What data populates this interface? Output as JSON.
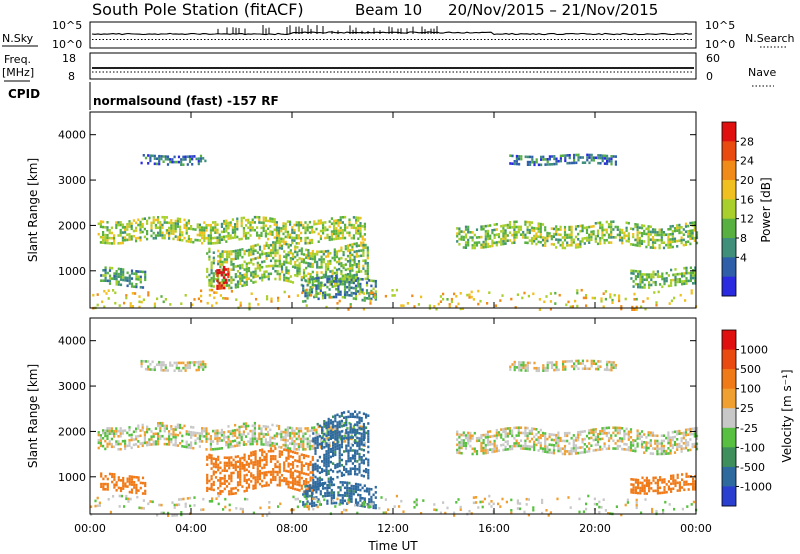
{
  "header": {
    "station": "South Pole Station (fitACF)",
    "beam": "Beam 10",
    "dates": "20/Nov/2015 – 21/Nov/2015"
  },
  "status_panels": {
    "nsky_label": "N.Sky",
    "nsearch_label": "N.Search",
    "freq_label_top": "Freq.",
    "freq_label_unit": "[MHz]",
    "nave_label": "Nave",
    "cpid_label": "CPID",
    "noise_tick_top": "10^5",
    "noise_tick_bottom": "10^0",
    "freq_tick_top": "18",
    "freq_tick_bottom": "8",
    "nave_tick_top": "60",
    "nave_tick_bottom": "0",
    "cpid_text": "normalsound (fast) -157 RF"
  },
  "chart_data": [
    {
      "type": "heatmap",
      "name": "power",
      "ylabel": "Slant Range [km]",
      "xlabel": "Time UT",
      "x_ticks": [
        "00:00",
        "04:00",
        "08:00",
        "12:00",
        "16:00",
        "20:00",
        "00:00"
      ],
      "xlim_hours": [
        0,
        24
      ],
      "ylim": [
        180,
        4500
      ],
      "y_ticks": [
        "1000",
        "2000",
        "3000",
        "4000"
      ],
      "colorbar_label": "Power [dB]",
      "colorbar_ticks": [
        "4",
        "8",
        "12",
        "16",
        "20",
        "24",
        "28"
      ],
      "colorbar_colors": [
        "#2a2ae0",
        "#2f5fa8",
        "#3f8f7a",
        "#58b040",
        "#a8cf2c",
        "#f0c020",
        "#f08a18",
        "#e84a10",
        "#e01010"
      ],
      "colorbar_range": [
        0,
        30
      ],
      "regions": [
        {
          "t0": 0.3,
          "t1": 10.9,
          "r0": 1650,
          "r1": 2150,
          "level": 14
        },
        {
          "t0": 14.5,
          "t1": 24.0,
          "r0": 1550,
          "r1": 2050,
          "level": 13
        },
        {
          "t0": 2.0,
          "t1": 4.6,
          "r0": 3380,
          "r1": 3560,
          "level": 6
        },
        {
          "t0": 16.6,
          "t1": 20.8,
          "r0": 3360,
          "r1": 3560,
          "level": 6
        },
        {
          "t0": 0.4,
          "t1": 2.2,
          "r0": 650,
          "r1": 1050,
          "level": 10
        },
        {
          "t0": 4.6,
          "t1": 11.0,
          "r0": 700,
          "r1": 1550,
          "level": 13
        },
        {
          "t0": 5.0,
          "t1": 5.5,
          "r0": 650,
          "r1": 1150,
          "level": 28
        },
        {
          "t0": 8.4,
          "t1": 11.3,
          "r0": 350,
          "r1": 850,
          "level": 9
        },
        {
          "t0": 21.4,
          "t1": 24.0,
          "r0": 650,
          "r1": 1050,
          "level": 12
        },
        {
          "t0": 0.0,
          "t1": 24.0,
          "r0": 190,
          "r1": 560,
          "level": 18
        }
      ]
    },
    {
      "type": "heatmap",
      "name": "velocity",
      "ylabel": "Slant Range [km]",
      "xlabel": "Time UT",
      "x_ticks": [
        "00:00",
        "04:00",
        "08:00",
        "12:00",
        "16:00",
        "20:00",
        "00:00"
      ],
      "xlim_hours": [
        0,
        24
      ],
      "ylim": [
        180,
        4500
      ],
      "y_ticks": [
        "1000",
        "2000",
        "3000",
        "4000"
      ],
      "colorbar_label": "Velocity [m s⁻¹]",
      "colorbar_ticks": [
        "1000",
        "500",
        "100",
        "25",
        "-25",
        "-100",
        "-500",
        "-1000"
      ],
      "colorbar_colors": [
        "#2a3fd0",
        "#2f6a9f",
        "#3f8f5c",
        "#58c040",
        "#c8c8c8",
        "#f0a030",
        "#f07a18",
        "#e84a10",
        "#e01010"
      ],
      "regions": [
        {
          "t0": 0.3,
          "t1": 10.9,
          "r0": 1650,
          "r1": 2150,
          "velocity": 0
        },
        {
          "t0": 14.5,
          "t1": 24.0,
          "r0": 1550,
          "r1": 2050,
          "velocity": 0
        },
        {
          "t0": 2.0,
          "t1": 4.6,
          "r0": 3380,
          "r1": 3560,
          "velocity": 0
        },
        {
          "t0": 16.6,
          "t1": 20.8,
          "r0": 3360,
          "r1": 3560,
          "velocity": 0
        },
        {
          "t0": 0.4,
          "t1": 2.2,
          "r0": 650,
          "r1": 1050,
          "velocity": -300
        },
        {
          "t0": 4.6,
          "t1": 8.8,
          "r0": 700,
          "r1": 1550,
          "velocity": -350
        },
        {
          "t0": 8.8,
          "t1": 11.0,
          "r0": 900,
          "r1": 2300,
          "velocity": 300
        },
        {
          "t0": 8.4,
          "t1": 11.3,
          "r0": 350,
          "r1": 850,
          "velocity": 300
        },
        {
          "t0": 21.4,
          "t1": 24.0,
          "r0": 650,
          "r1": 1050,
          "velocity": -300
        },
        {
          "t0": 0.0,
          "t1": 24.0,
          "r0": 190,
          "r1": 560,
          "velocity": 0
        }
      ]
    }
  ]
}
